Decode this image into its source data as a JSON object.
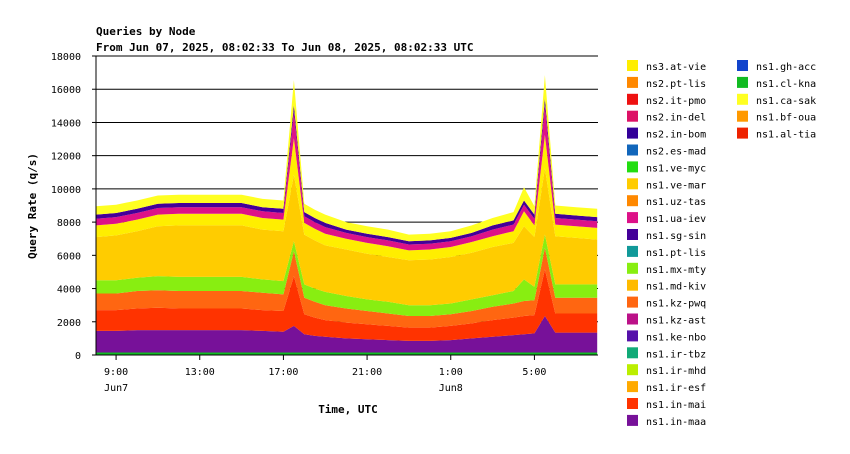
{
  "chart_data": {
    "type": "area",
    "stacked": true,
    "title": "Queries by Node",
    "subtitle": "From Jun 07, 2025, 08:02:33 To Jun 08, 2025, 08:02:33 UTC",
    "xlabel": "Time, UTC",
    "ylabel": "Query Rate (q/s)",
    "ylim": [
      0,
      18000
    ],
    "y_ticks": [
      0,
      2000,
      4000,
      6000,
      8000,
      10000,
      12000,
      14000,
      16000,
      18000
    ],
    "x_range_hours": [
      8.04,
      32.04
    ],
    "x_ticks": [
      {
        "hour": 9,
        "label": "9:00",
        "sublabel": "Jun7"
      },
      {
        "hour": 13,
        "label": "13:00",
        "sublabel": ""
      },
      {
        "hour": 17,
        "label": "17:00",
        "sublabel": ""
      },
      {
        "hour": 21,
        "label": "21:00",
        "sublabel": ""
      },
      {
        "hour": 25,
        "label": "1:00",
        "sublabel": "Jun8"
      },
      {
        "hour": 29,
        "label": "5:00",
        "sublabel": ""
      }
    ],
    "grid": true,
    "legend_position": "right",
    "legend": [
      {
        "name": "ns3.at-vie",
        "color": "#ffee00"
      },
      {
        "name": "ns2.pt-lis",
        "color": "#ff8800"
      },
      {
        "name": "ns2.it-pmo",
        "color": "#ee1111"
      },
      {
        "name": "ns2.in-del",
        "color": "#dd1166"
      },
      {
        "name": "ns2.in-bom",
        "color": "#330099"
      },
      {
        "name": "ns2.es-mad",
        "color": "#1166bb"
      },
      {
        "name": "ns1.ve-myc",
        "color": "#22dd11"
      },
      {
        "name": "ns1.ve-mar",
        "color": "#ffcc00"
      },
      {
        "name": "ns1.uz-tas",
        "color": "#ff8800"
      },
      {
        "name": "ns1.ua-iev",
        "color": "#dd1188"
      },
      {
        "name": "ns1.sg-sin",
        "color": "#440099"
      },
      {
        "name": "ns1.pt-lis",
        "color": "#119999"
      },
      {
        "name": "ns1.mx-mty",
        "color": "#88ee11"
      },
      {
        "name": "ns1.md-kiv",
        "color": "#ffbb00"
      },
      {
        "name": "ns1.kz-pwq",
        "color": "#ff6611"
      },
      {
        "name": "ns1.kz-ast",
        "color": "#bb1188"
      },
      {
        "name": "ns1.ke-nbo",
        "color": "#5511aa"
      },
      {
        "name": "ns1.ir-tbz",
        "color": "#11aa77"
      },
      {
        "name": "ns1.ir-mhd",
        "color": "#bbee00"
      },
      {
        "name": "ns1.ir-esf",
        "color": "#ffaa00"
      },
      {
        "name": "ns1.in-mai",
        "color": "#ff3300"
      },
      {
        "name": "ns1.in-maa",
        "color": "#771199"
      },
      {
        "name": "ns1.gh-acc",
        "color": "#1144cc"
      },
      {
        "name": "ns1.cl-kna",
        "color": "#11bb22"
      },
      {
        "name": "ns1.ca-sak",
        "color": "#ffff22"
      },
      {
        "name": "ns1.bf-oua",
        "color": "#ff9900"
      },
      {
        "name": "ns1.al-tia",
        "color": "#ee2200"
      }
    ],
    "x": [
      8,
      9,
      10,
      11,
      12,
      13,
      14,
      15,
      16,
      17,
      17.5,
      18,
      18.5,
      19,
      20,
      21,
      22,
      23,
      24,
      25,
      26,
      27,
      28,
      28.5,
      29,
      29.5,
      30,
      31,
      32
    ],
    "series": [
      {
        "name": "ns1.cl-kna",
        "color": "#11bb22",
        "values": [
          150,
          150,
          150,
          150,
          150,
          150,
          150,
          150,
          150,
          150,
          150,
          150,
          150,
          150,
          150,
          150,
          150,
          150,
          150,
          150,
          150,
          150,
          150,
          150,
          150,
          150,
          150,
          150,
          150
        ]
      },
      {
        "name": "ns1.in-maa",
        "color": "#771199",
        "values": [
          1300,
          1300,
          1350,
          1350,
          1350,
          1350,
          1350,
          1350,
          1300,
          1250,
          1600,
          1100,
          1000,
          950,
          850,
          800,
          750,
          700,
          700,
          750,
          850,
          950,
          1050,
          1100,
          1150,
          2200,
          1200,
          1200,
          1200
        ]
      },
      {
        "name": "ns1.in-mai",
        "color": "#ff3300",
        "values": [
          1250,
          1250,
          1300,
          1350,
          1300,
          1300,
          1300,
          1300,
          1250,
          1250,
          3000,
          1200,
          1100,
          1000,
          950,
          900,
          850,
          800,
          800,
          850,
          900,
          1000,
          1050,
          1100,
          1100,
          2800,
          1150,
          1150,
          1150
        ]
      },
      {
        "name": "ns1.kz-pwq",
        "color": "#ff6611",
        "values": [
          1000,
          1000,
          1050,
          1050,
          1050,
          1050,
          1050,
          1050,
          1050,
          1000,
          1500,
          1000,
          950,
          900,
          850,
          800,
          750,
          700,
          700,
          700,
          750,
          800,
          850,
          900,
          900,
          1300,
          950,
          950,
          950
        ]
      },
      {
        "name": "ns1.mx-mty",
        "color": "#88ee11",
        "values": [
          800,
          800,
          800,
          850,
          850,
          850,
          850,
          850,
          800,
          800,
          600,
          800,
          800,
          800,
          750,
          700,
          700,
          650,
          650,
          650,
          700,
          700,
          750,
          1300,
          800,
          800,
          800,
          800,
          800
        ]
      },
      {
        "name": "ns1.ve-mar",
        "color": "#ffcc00",
        "values": [
          2600,
          2700,
          2800,
          3000,
          3100,
          3100,
          3100,
          3100,
          3000,
          3000,
          4000,
          3000,
          2900,
          2800,
          2800,
          2750,
          2700,
          2700,
          2750,
          2800,
          2800,
          2900,
          2900,
          3200,
          3000,
          4000,
          2900,
          2800,
          2700
        ]
      },
      {
        "name": "ns3.at-vie",
        "color": "#ffee00",
        "values": [
          700,
          700,
          700,
          700,
          700,
          700,
          700,
          700,
          700,
          700,
          2200,
          700,
          700,
          700,
          650,
          650,
          650,
          600,
          600,
          600,
          650,
          650,
          700,
          900,
          700,
          2000,
          700,
          700,
          700
        ]
      },
      {
        "name": "ns1.ua-iev",
        "color": "#dd1188",
        "values": [
          400,
          400,
          400,
          400,
          400,
          400,
          400,
          400,
          400,
          400,
          1600,
          400,
          400,
          400,
          350,
          350,
          350,
          350,
          350,
          350,
          350,
          400,
          400,
          400,
          400,
          1800,
          400,
          400,
          400
        ]
      },
      {
        "name": "ns1.sg-sin",
        "color": "#440099",
        "values": [
          250,
          250,
          250,
          250,
          250,
          250,
          250,
          250,
          250,
          250,
          400,
          250,
          250,
          250,
          200,
          200,
          200,
          200,
          200,
          200,
          200,
          250,
          250,
          250,
          250,
          400,
          250,
          250,
          250
        ]
      },
      {
        "name": "ns1.ca-sak",
        "color": "#ffff22",
        "values": [
          500,
          500,
          500,
          500,
          500,
          500,
          500,
          500,
          500,
          500,
          1500,
          500,
          500,
          500,
          450,
          450,
          450,
          400,
          400,
          400,
          450,
          450,
          500,
          800,
          500,
          1400,
          500,
          500,
          500
        ]
      }
    ]
  }
}
